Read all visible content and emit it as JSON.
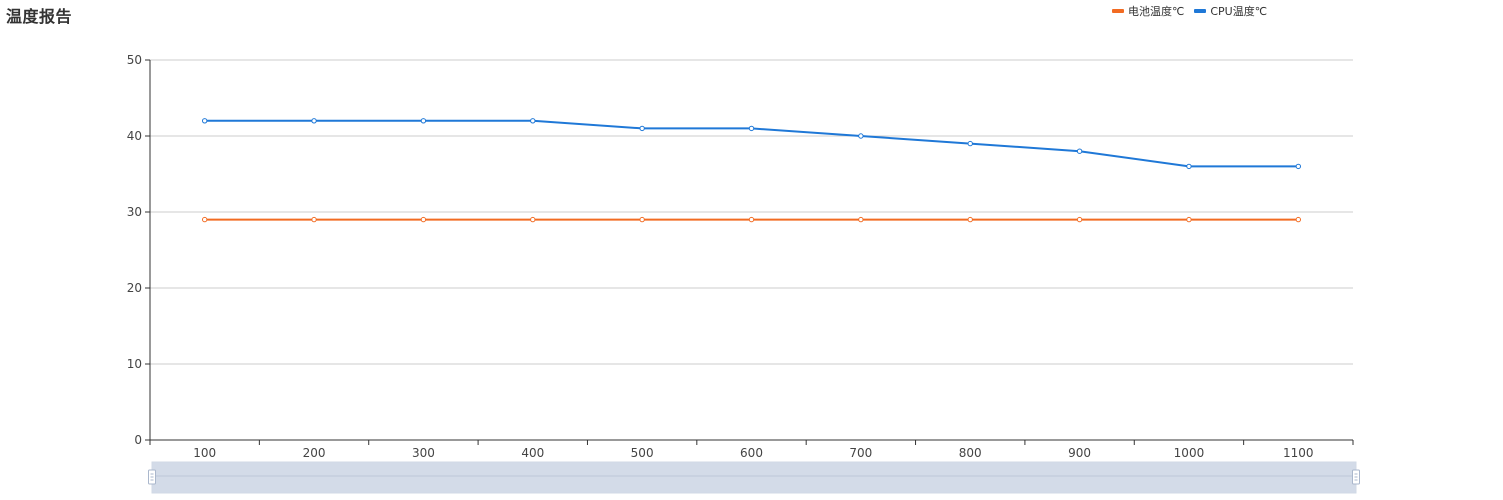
{
  "chart_data": {
    "type": "line",
    "title": "温度报告",
    "xlabel": "",
    "ylabel": "",
    "x": [
      100,
      200,
      300,
      400,
      500,
      600,
      700,
      800,
      900,
      1000,
      1100
    ],
    "ylim": [
      0,
      50
    ],
    "yticks": [
      0,
      10,
      20,
      30,
      40,
      50
    ],
    "grid": true,
    "legend_position": "top-right",
    "series": [
      {
        "name": "电池温度℃",
        "color": "#f26b22",
        "values": [
          29,
          29,
          29,
          29,
          29,
          29,
          29,
          29,
          29,
          29,
          29
        ]
      },
      {
        "name": "CPU温度℃",
        "color": "#1f78d7",
        "values": [
          42,
          42,
          42,
          42,
          41,
          41,
          40,
          39,
          38,
          36,
          36
        ]
      }
    ],
    "data_zoom": {
      "start_percent": 0,
      "end_percent": 100
    }
  }
}
